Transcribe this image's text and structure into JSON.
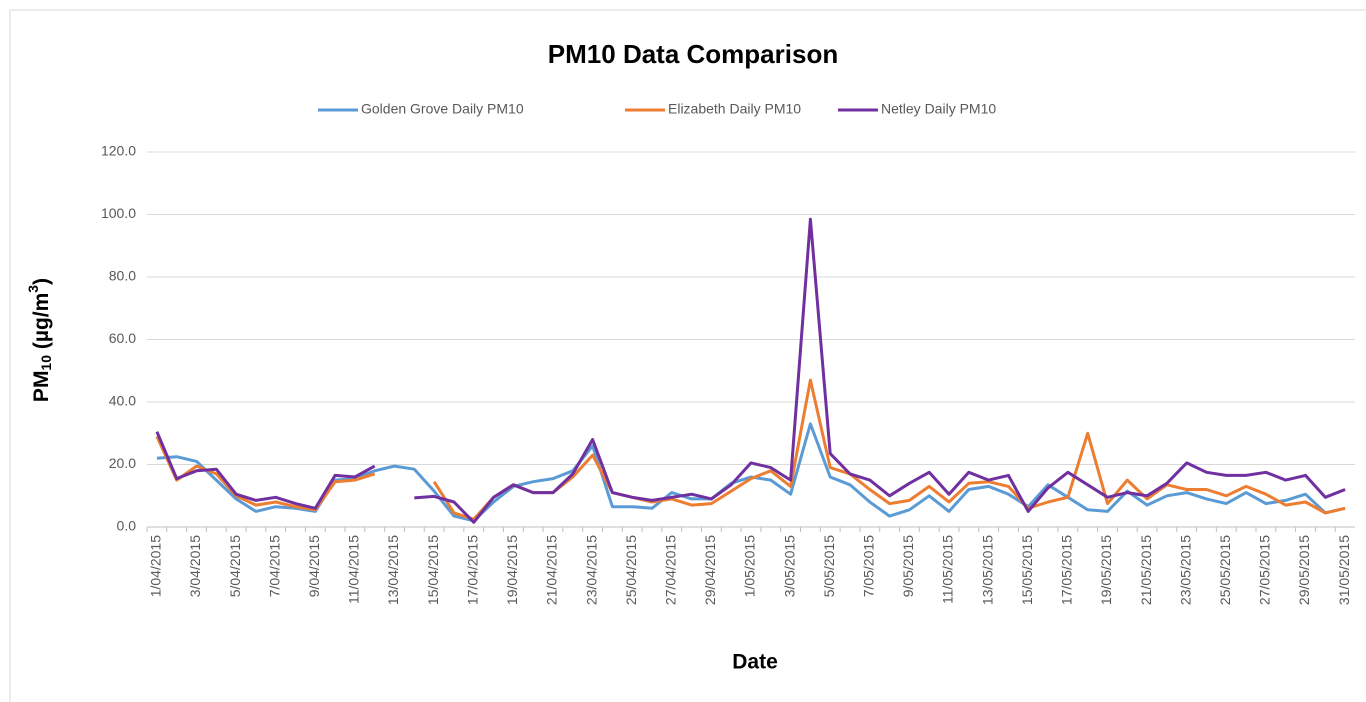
{
  "chart_data": {
    "type": "line",
    "title": "PM10 Data Comparison",
    "x_label": "Date",
    "y_label": [
      "PM",
      "10",
      " (µg/m",
      "3",
      ")"
    ],
    "categories": [
      "1/04/2015",
      null,
      "3/04/2015",
      null,
      "5/04/2015",
      null,
      "7/04/2015",
      null,
      "9/04/2015",
      null,
      "11/04/2015",
      null,
      "13/04/2015",
      null,
      "15/04/2015",
      null,
      "17/04/2015",
      null,
      "19/04/2015",
      null,
      "21/04/2015",
      null,
      "23/04/2015",
      null,
      "25/04/2015",
      null,
      "27/04/2015",
      null,
      "29/04/2015",
      null,
      "1/05/2015",
      null,
      "3/05/2015",
      null,
      "5/05/2015",
      null,
      "7/05/2015",
      null,
      "9/05/2015",
      null,
      "11/05/2015",
      null,
      "13/05/2015",
      null,
      "15/05/2015",
      null,
      "17/05/2015",
      null,
      "19/05/2015",
      null,
      "21/05/2015",
      null,
      "23/05/2015",
      null,
      "25/05/2015",
      null,
      "27/05/2015",
      null,
      "29/05/2015",
      null,
      "31/05/2015"
    ],
    "series": [
      {
        "name": "Golden Grove Daily PM10",
        "color": "#5b9bd5",
        "values": [
          22,
          22.5,
          21,
          15,
          9,
          5,
          6.5,
          6,
          5,
          15,
          15.5,
          18,
          19.5,
          18.5,
          11.5,
          3.5,
          2,
          8,
          13,
          14.5,
          15.5,
          18,
          26,
          6.5,
          6.5,
          6,
          11,
          9,
          9,
          14,
          16,
          15,
          10.5,
          33,
          16,
          13.5,
          8,
          3.5,
          5.5,
          10,
          5,
          12,
          13,
          10.5,
          6.5,
          13.5,
          9.5,
          5.5,
          5,
          11.5,
          7,
          10,
          11,
          9,
          7.5,
          11,
          7.5,
          8.5,
          10.5,
          4.5,
          6
        ]
      },
      {
        "name": "Elizabeth Daily PM10",
        "color": "#ed7d31",
        "values": [
          29,
          15,
          19.5,
          17,
          10,
          7,
          8,
          6.5,
          5.5,
          14.5,
          15,
          17,
          null,
          null,
          14.5,
          4.5,
          2.5,
          9.5,
          13.5,
          11,
          11,
          16,
          23,
          11,
          9.5,
          8,
          9,
          7,
          7.5,
          11.5,
          15.5,
          18,
          13,
          47,
          19,
          17,
          12,
          7.5,
          8.5,
          13,
          8,
          14,
          14.5,
          13,
          6,
          8,
          9.5,
          30,
          7.5,
          15,
          9,
          13.5,
          12,
          12,
          10,
          13,
          10.5,
          7,
          8,
          4.5,
          6
        ]
      },
      {
        "name": "Netley Daily PM10",
        "color": "#7030a0",
        "values": [
          30.5,
          15.5,
          18,
          18.5,
          10.5,
          8.5,
          9.5,
          7.5,
          6,
          16.5,
          16,
          19.5,
          null,
          9.3,
          9.8,
          8,
          1.5,
          9.5,
          13.5,
          11,
          11,
          17,
          28,
          11,
          9.5,
          8.5,
          9.5,
          10.5,
          9,
          13.5,
          20.5,
          19,
          15,
          98.5,
          23.5,
          17,
          15,
          10,
          14,
          17.5,
          10.5,
          17.5,
          15,
          16.5,
          5,
          12.5,
          17.5,
          13.5,
          9.5,
          11,
          10,
          14,
          20.5,
          17.5,
          16.5,
          16.5,
          17.5,
          15,
          16.5,
          9.5,
          12
        ]
      }
    ],
    "ylim": [
      0,
      120
    ],
    "yticks": [
      {
        "value": 0,
        "label": "0.0"
      },
      {
        "value": 20,
        "label": "20.0"
      },
      {
        "value": 40,
        "label": "40.0"
      },
      {
        "value": 60,
        "label": "60.0"
      },
      {
        "value": 80,
        "label": "80.0"
      },
      {
        "value": 100,
        "label": "100.0"
      },
      {
        "value": 120,
        "label": "120.0"
      }
    ],
    "grid": true,
    "legend": "top"
  }
}
